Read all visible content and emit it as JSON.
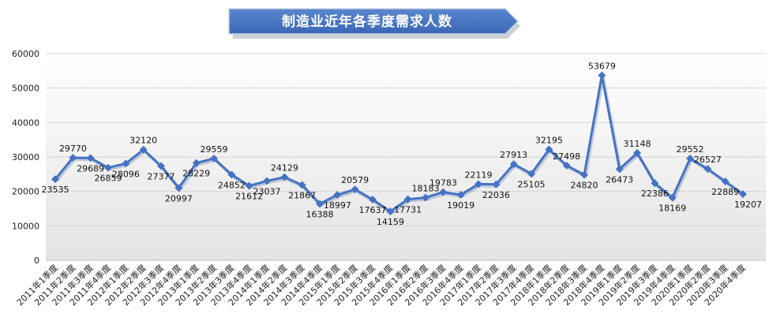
{
  "chart_data": {
    "type": "line",
    "title": "制造业近年各季度需求人数",
    "xlabel": "",
    "ylabel": "",
    "ylim": [
      0,
      60000
    ],
    "yticks": [
      "0",
      "10000",
      "20000",
      "30000",
      "40000",
      "50000",
      "60000"
    ],
    "grid": true,
    "legend": "none",
    "colors": {
      "line": "#4472C4",
      "banner": "#4472C4",
      "plot_bg_top": "#ffffff",
      "plot_bg_bottom": "#e6e6e6"
    },
    "categories": [
      "2011年1季度",
      "2011年2季度",
      "2011年3季度",
      "2011年4季度",
      "2012年1季度",
      "2012年2季度",
      "2012年3季度",
      "2012年4季度",
      "2013年1季度",
      "2013年2季度",
      "2013年3季度",
      "2013年4季度",
      "2014年1季度",
      "2014年2季度",
      "2014年3季度",
      "2014年4季度",
      "2015年1季度",
      "2015年2季度",
      "2015年3季度",
      "2015年4季度",
      "2016年1季度",
      "2016年2季度",
      "2016年3季度",
      "2016年4季度",
      "2017年1季度",
      "2017年2季度",
      "2017年3季度",
      "2017年4季度",
      "2018年1季度",
      "2018年2季度",
      "2018年3季度",
      "2018年4季度",
      "2019年1季度",
      "2019年2季度",
      "2019年3季度",
      "2019年4季度",
      "2020年1季度",
      "2020年2季度",
      "2020年3季度",
      "2020年4季度"
    ],
    "series": [
      {
        "values": [
          23535,
          29770,
          29689,
          26859,
          28096,
          32120,
          27377,
          20997,
          28229,
          29559,
          24852,
          21612,
          23037,
          24129,
          21867,
          16388,
          18997,
          20579,
          17637,
          14159,
          17731,
          18183,
          19783,
          19019,
          22119,
          22036,
          27913,
          25105,
          32195,
          27498,
          24820,
          53679,
          26473,
          31148,
          22386,
          18169,
          29552,
          26527,
          22889,
          19207
        ]
      }
    ]
  }
}
